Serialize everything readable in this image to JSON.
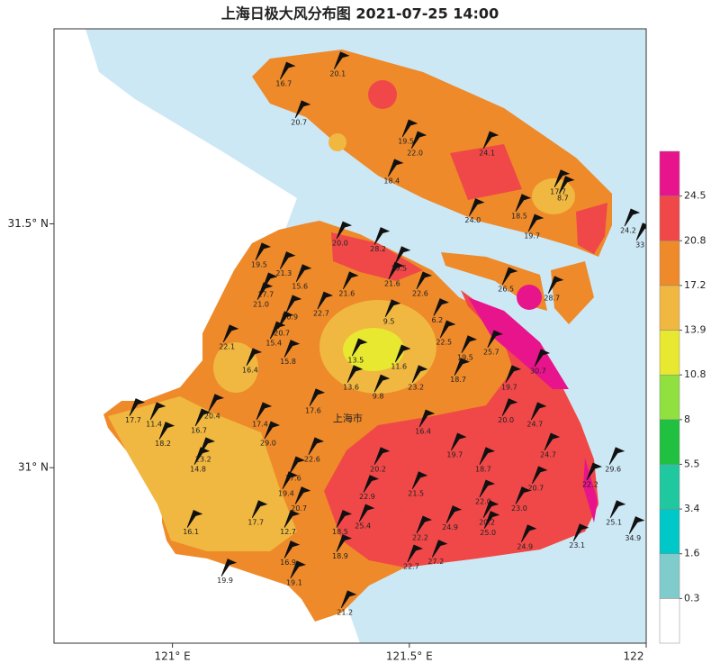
{
  "chart_data": {
    "type": "station-map",
    "title": "上海日极大风分布图 2021-07-25 14:00",
    "place_label": "上海市",
    "xlim": [
      120.75,
      122.0
    ],
    "ylim": [
      30.64,
      31.9
    ],
    "xticks": [
      {
        "value": 121,
        "label": "121° E"
      },
      {
        "value": 121.5,
        "label": "121.5° E"
      },
      122
    ],
    "yticks": [
      {
        "value": 31,
        "label": "31° N"
      },
      {
        "value": 31.5,
        "label": "31.5° N"
      }
    ],
    "colorbar": {
      "levels": [
        0.3,
        1.6,
        3.4,
        5.5,
        8,
        10.8,
        13.9,
        17.2,
        20.8,
        24.5
      ],
      "colors": [
        "#ffffff",
        "#80cccc",
        "#00c8c8",
        "#20c8a0",
        "#20c040",
        "#90e040",
        "#e8e830",
        "#f0b840",
        "#ee8a2a",
        "#f04848",
        "#e8148c"
      ]
    },
    "stations": {
      "lon": [
        121.349,
        121.235,
        121.267,
        121.493,
        121.512,
        121.664,
        121.463,
        121.814,
        121.824,
        121.634,
        121.732,
        121.759,
        121.962,
        121.987,
        121.354,
        121.434,
        121.478,
        121.464,
        121.523,
        121.704,
        121.801,
        121.183,
        121.235,
        121.197,
        121.187,
        121.269,
        121.248,
        121.314,
        121.368,
        121.457,
        121.559,
        121.115,
        121.214,
        121.244,
        121.231,
        121.573,
        121.673,
        121.618,
        121.772,
        121.164,
        121.387,
        121.478,
        121.603,
        121.711,
        121.377,
        121.514,
        121.434,
        120.917,
        120.961,
        120.98,
        121.056,
        121.084,
        121.185,
        121.297,
        121.704,
        121.765,
        121.202,
        121.529,
        121.065,
        121.054,
        121.295,
        121.656,
        121.793,
        121.596,
        121.93,
        121.882,
        121.434,
        121.255,
        121.514,
        121.411,
        121.767,
        121.24,
        121.656,
        121.732,
        121.267,
        121.176,
        121.402,
        121.586,
        121.664,
        121.666,
        121.932,
        121.972,
        121.039,
        121.244,
        121.354,
        121.523,
        121.744,
        121.854,
        121.354,
        121.244,
        121.504,
        121.556,
        121.111,
        121.257,
        121.364
      ],
      "lat": [
        31.808,
        31.787,
        31.708,
        31.669,
        31.645,
        31.645,
        31.588,
        31.566,
        31.553,
        31.507,
        31.516,
        31.475,
        31.486,
        31.457,
        31.46,
        31.448,
        31.409,
        31.377,
        31.357,
        31.366,
        31.348,
        31.416,
        31.398,
        31.355,
        31.335,
        31.372,
        31.309,
        31.316,
        31.357,
        31.3,
        31.302,
        31.248,
        31.255,
        31.217,
        31.276,
        31.257,
        31.237,
        31.226,
        31.198,
        31.2,
        31.22,
        31.207,
        31.18,
        31.165,
        31.165,
        31.165,
        31.146,
        31.097,
        31.089,
        31.049,
        31.076,
        31.106,
        31.089,
        31.117,
        31.097,
        31.089,
        31.05,
        31.074,
        31.017,
        30.997,
        31.017,
        30.997,
        31.026,
        31.026,
        30.997,
        30.965,
        30.997,
        30.978,
        30.947,
        30.94,
        30.958,
        30.947,
        30.93,
        30.916,
        30.916,
        30.888,
        30.88,
        30.877,
        30.888,
        30.866,
        30.888,
        30.855,
        30.868,
        30.868,
        30.868,
        30.856,
        30.838,
        30.84,
        30.818,
        30.805,
        30.797,
        30.807,
        30.768,
        30.764,
        30.703
      ],
      "values": [
        20.1,
        16.7,
        20.7,
        19.5,
        22.0,
        24.1,
        18.4,
        17.7,
        8.7,
        24.0,
        18.5,
        19.7,
        24.2,
        33,
        20.0,
        28.2,
        19.5,
        21.6,
        22.6,
        26.5,
        28.7,
        19.5,
        21.3,
        17.7,
        21.0,
        15.6,
        20.9,
        22.7,
        21.6,
        9.5,
        6.2,
        22.1,
        15.4,
        15.8,
        20.7,
        22.5,
        25.7,
        19.5,
        30.7,
        16.4,
        13.5,
        11.6,
        18.7,
        19.7,
        13.6,
        23.2,
        9.8,
        17.7,
        11.4,
        18.2,
        16.7,
        20.4,
        17.4,
        17.6,
        20.0,
        24.7,
        29.0,
        16.4,
        23.2,
        14.8,
        22.6,
        18.7,
        24.7,
        19.7,
        29.6,
        22.2,
        20.2,
        17.6,
        21.5,
        22.9,
        20.7,
        19.4,
        22.0,
        23.0,
        20.7,
        17.7,
        25.4,
        24.9,
        20.2,
        25.0,
        25.1,
        34.9,
        16.1,
        12.7,
        18.5,
        22.2,
        24.9,
        23.1,
        18.9,
        16.9,
        22.7,
        27.2,
        19.9,
        19.1,
        21.2
      ],
      "value_labels": [
        "20.1",
        "16.7",
        "20.7",
        "19.5",
        "22.0",
        "24.1",
        "18.4",
        "17.7",
        "8.7",
        "24.0",
        "18.5",
        "19.7",
        "24.2",
        "33",
        "20.0",
        "28.2",
        "19.5",
        "21.6",
        "22.6",
        "26.5",
        "28.7",
        "19.5",
        "21.3",
        "17.7",
        "21.0",
        "15.6",
        "20.9",
        "22.7",
        "21.6",
        "9.5",
        "6.2",
        "22.1",
        "15.4",
        "15.8",
        "20.7",
        "22.5",
        "25.7",
        "19.5",
        "30.7",
        "16.4",
        "13.5",
        "11.6",
        "18.7",
        "19.7",
        "13.6",
        "23.2",
        "9.8",
        "17.7",
        "11.4",
        "18.2",
        "16.7",
        "20.4",
        "17.4",
        "17.6",
        "20.0",
        "24.7",
        "29.0",
        "16.4",
        "23.2",
        "14.8",
        "22.6",
        "18.7",
        "24.7",
        "19.7",
        "29.6",
        "22.2",
        "20.2",
        "17.6",
        "21.5",
        "22.9",
        "20.7",
        "19.4",
        "22.0",
        "23.0",
        "20.7",
        "17.7",
        "25.4",
        "24.9",
        "20.2",
        "25.0",
        "25.1",
        "34.9",
        "16.1",
        "12.7",
        "18.5",
        "22.2",
        "24.9",
        "23.1",
        "18.9",
        "16.9",
        "22.7",
        "27.2",
        "19.9",
        "19.1",
        "21.2"
      ]
    }
  }
}
